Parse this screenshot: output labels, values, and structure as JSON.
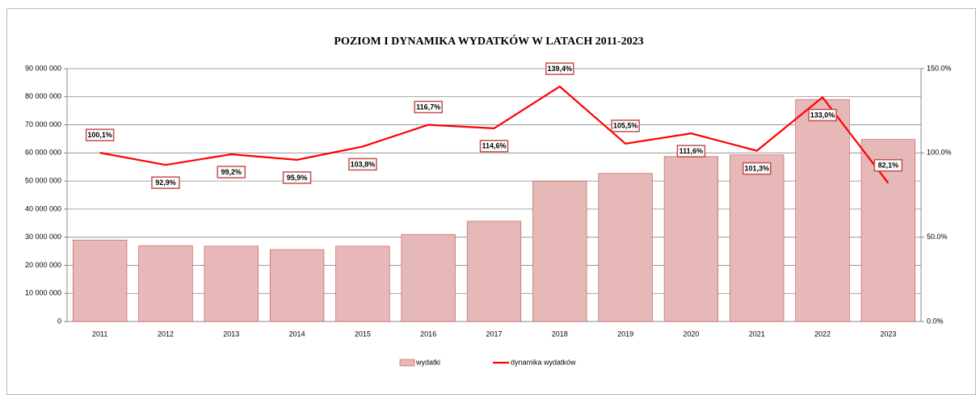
{
  "chart_data": {
    "type": "bar_line",
    "title": "POZIOM I DYNAMIKA WYDATKÓW W LATACH 2011-2023",
    "categories": [
      "2011",
      "2012",
      "2013",
      "2014",
      "2015",
      "2016",
      "2017",
      "2018",
      "2019",
      "2020",
      "2021",
      "2022",
      "2023"
    ],
    "series": [
      {
        "name": "wydatki",
        "type": "bar",
        "color": "#e6b8b7",
        "values": [
          29000000,
          27000000,
          26800000,
          25600000,
          26800000,
          31000000,
          35700000,
          50000000,
          52700000,
          58700000,
          59300000,
          79000000,
          64800000
        ]
      },
      {
        "name": "dynamika wydatków",
        "type": "line",
        "axis": "y2",
        "color": "#ff0000",
        "values": [
          100.1,
          92.9,
          99.2,
          95.9,
          103.8,
          116.7,
          114.6,
          139.4,
          105.5,
          111.6,
          101.3,
          133.0,
          82.1
        ],
        "value_labels": [
          "100,1%",
          "92,9%",
          "99,2%",
          "95,9%",
          "103,8%",
          "116,7%",
          "114,6%",
          "139,4%",
          "105,5%",
          "111,6%",
          "101,3%",
          "133,0%",
          "82,1%"
        ]
      }
    ],
    "ylim": [
      0,
      90000000
    ],
    "yticks": [
      {
        "value": 0,
        "label": "0"
      },
      {
        "value": 10000000,
        "label": "10 000 000"
      },
      {
        "value": 20000000,
        "label": "20 000 000"
      },
      {
        "value": 30000000,
        "label": "30 000 000"
      },
      {
        "value": 40000000,
        "label": "40 000 000"
      },
      {
        "value": 50000000,
        "label": "50 000 000"
      },
      {
        "value": 60000000,
        "label": "60 000 000"
      },
      {
        "value": 70000000,
        "label": "70 000 000"
      },
      {
        "value": 80000000,
        "label": "80 000 000"
      },
      {
        "value": 90000000,
        "label": "90 000 000"
      }
    ],
    "y2lim": [
      0,
      150
    ],
    "y2ticks": [
      {
        "value": 0,
        "label": "0.0%"
      },
      {
        "value": 50,
        "label": "50.0%"
      },
      {
        "value": 100,
        "label": "100.0%"
      },
      {
        "value": 150,
        "label": "150.0%"
      }
    ],
    "grid": true
  }
}
